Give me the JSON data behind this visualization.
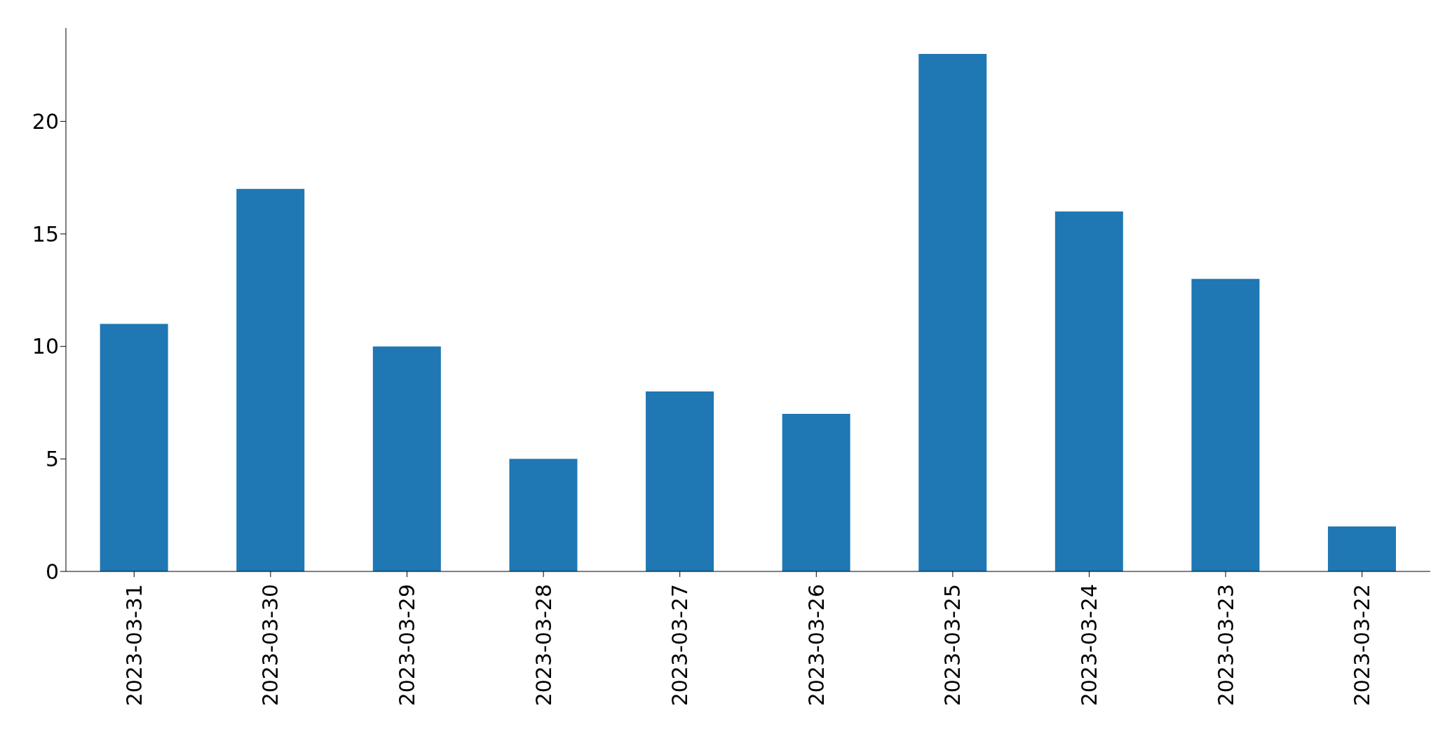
{
  "chart_data": {
    "type": "bar",
    "categories": [
      "2023-03-31",
      "2023-03-30",
      "2023-03-29",
      "2023-03-28",
      "2023-03-27",
      "2023-03-26",
      "2023-03-25",
      "2023-03-24",
      "2023-03-23",
      "2023-03-22"
    ],
    "values": [
      11,
      17,
      10,
      5,
      8,
      7,
      23,
      16,
      13,
      2
    ],
    "color": "#1f77b4",
    "ylim": [
      0,
      24.15
    ],
    "yticks": [
      0,
      5,
      10,
      15,
      20
    ]
  }
}
